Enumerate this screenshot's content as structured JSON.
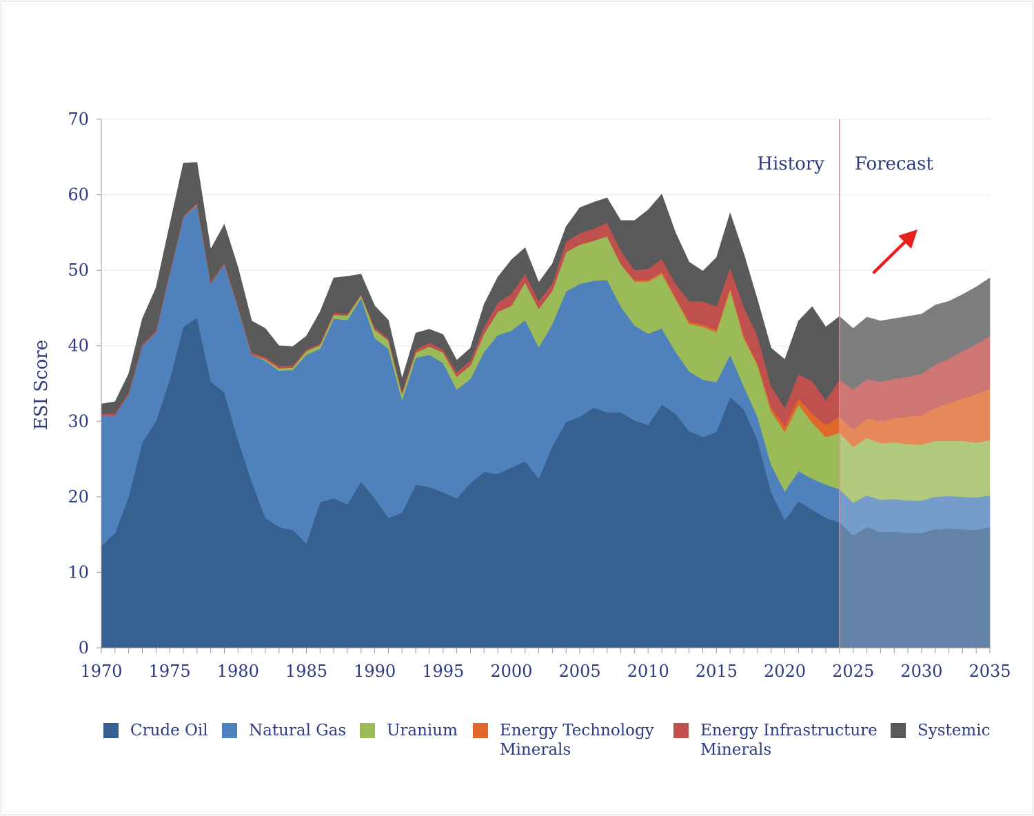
{
  "chart_data": {
    "type": "area",
    "stacked": true,
    "ylabel": "ESI Score",
    "xlabel": "",
    "ylim": [
      0,
      70
    ],
    "yticks": [
      0,
      10,
      20,
      30,
      40,
      50,
      60,
      70
    ],
    "xlim": [
      1970,
      2035
    ],
    "xticks": [
      1970,
      1975,
      1980,
      1985,
      1990,
      1995,
      2000,
      2005,
      2010,
      2015,
      2020,
      2025,
      2030,
      2035
    ],
    "grid": "horizontal",
    "legend_position": "bottom",
    "forecast_start": 2024,
    "annotations": {
      "history": "History",
      "forecast": "Forecast",
      "arrow": "red-up-right-arrow"
    },
    "x": [
      1970,
      1971,
      1972,
      1973,
      1974,
      1975,
      1976,
      1977,
      1978,
      1979,
      1980,
      1981,
      1982,
      1983,
      1984,
      1985,
      1986,
      1987,
      1988,
      1989,
      1990,
      1991,
      1992,
      1993,
      1994,
      1995,
      1996,
      1997,
      1998,
      1999,
      2000,
      2001,
      2002,
      2003,
      2004,
      2005,
      2006,
      2007,
      2008,
      2009,
      2010,
      2011,
      2012,
      2013,
      2014,
      2015,
      2016,
      2017,
      2018,
      2019,
      2020,
      2021,
      2022,
      2023,
      2024,
      2025,
      2026,
      2027,
      2028,
      2029,
      2030,
      2031,
      2032,
      2033,
      2034,
      2035
    ],
    "series": [
      {
        "name": "Crude Oil",
        "color": "#36608f",
        "values": [
          13.5,
          15.2,
          20.0,
          27.2,
          30.0,
          35.5,
          42.5,
          43.7,
          35.3,
          33.8,
          27.5,
          22.0,
          17.2,
          16.0,
          15.6,
          13.8,
          19.3,
          19.8,
          19.0,
          22.0,
          19.8,
          17.2,
          17.9,
          21.6,
          21.3,
          20.6,
          19.8,
          21.8,
          23.3,
          23.0,
          23.9,
          24.7,
          22.4,
          26.7,
          29.9,
          30.6,
          31.8,
          31.2,
          31.2,
          30.1,
          29.5,
          32.2,
          31.0,
          28.7,
          27.9,
          28.6,
          33.2,
          31.6,
          27.5,
          20.6,
          16.9,
          19.4,
          18.3,
          17.2,
          16.6,
          14.9,
          16.0,
          15.3,
          15.4,
          15.2,
          15.2,
          15.7,
          15.8,
          15.7,
          15.6,
          16.0
        ]
      },
      {
        "name": "Natural Gas",
        "color": "#4f81bd",
        "values": [
          17.3,
          15.6,
          13.6,
          12.8,
          11.8,
          14.0,
          14.5,
          14.9,
          12.9,
          17.0,
          17.5,
          16.8,
          20.8,
          20.7,
          21.2,
          25.0,
          20.3,
          23.8,
          24.4,
          24.3,
          21.2,
          22.4,
          14.9,
          16.8,
          17.5,
          17.1,
          14.4,
          13.8,
          15.9,
          18.4,
          18.1,
          18.7,
          17.4,
          16.2,
          17.3,
          17.6,
          16.8,
          17.5,
          14.0,
          12.6,
          12.1,
          10.1,
          8.2,
          7.9,
          7.6,
          6.6,
          5.6,
          3.0,
          3.1,
          3.6,
          3.8,
          4.0,
          4.1,
          4.4,
          4.4,
          4.3,
          4.2,
          4.3,
          4.3,
          4.3,
          4.3,
          4.3,
          4.3,
          4.3,
          4.3,
          4.2
        ]
      },
      {
        "name": "Uranium",
        "color": "#9bbb59",
        "values": [
          0,
          0,
          0,
          0,
          0,
          0,
          0,
          0.1,
          0,
          0,
          0,
          0,
          0.2,
          0.3,
          0.3,
          0.5,
          0.5,
          0.5,
          0.6,
          0.4,
          1.1,
          1.1,
          0.8,
          0.7,
          1.1,
          1.4,
          1.7,
          1.8,
          2.4,
          3.1,
          3.3,
          5.0,
          5.1,
          4.4,
          5.2,
          5.2,
          5.3,
          5.8,
          5.6,
          5.8,
          6.9,
          7.2,
          7.0,
          6.3,
          7.0,
          6.6,
          8.6,
          6.4,
          6.8,
          7.1,
          7.9,
          8.8,
          7.4,
          6.3,
          7.5,
          7.4,
          7.6,
          7.5,
          7.5,
          7.5,
          7.4,
          7.4,
          7.3,
          7.4,
          7.3,
          7.3
        ]
      },
      {
        "name": "Energy Technology\nMinerals",
        "color": "#e0672a",
        "values": [
          0,
          0,
          0,
          0,
          0,
          0,
          0,
          0,
          0,
          0,
          0,
          0,
          0,
          0,
          0,
          0,
          0,
          0,
          0,
          0,
          0,
          0,
          0,
          0,
          0,
          0,
          0,
          0,
          0,
          0,
          0,
          0,
          0,
          0,
          0,
          0,
          0,
          0,
          0,
          0.2,
          0.2,
          0.3,
          0.2,
          0.3,
          0.3,
          0.3,
          0.3,
          0.3,
          0.3,
          0.5,
          0.7,
          0.8,
          1.2,
          1.6,
          2.1,
          2.3,
          2.6,
          2.9,
          3.2,
          3.6,
          3.9,
          4.4,
          5.0,
          5.6,
          6.4,
          6.8
        ]
      },
      {
        "name": "Energy Infrastructure\nMinerals",
        "color": "#c0504d",
        "values": [
          0.2,
          0.2,
          0.2,
          0.2,
          0.2,
          0.2,
          0.2,
          0.2,
          0.2,
          0.2,
          0.2,
          0.3,
          0.3,
          0.3,
          0.3,
          0.2,
          0.2,
          0.3,
          0.2,
          0.1,
          0.3,
          0.3,
          0.3,
          0.4,
          0.5,
          0.4,
          0.6,
          0.6,
          0.9,
          1.2,
          1.6,
          1.1,
          1.0,
          1.0,
          1.4,
          1.5,
          1.6,
          1.8,
          1.8,
          1.3,
          1.5,
          1.7,
          1.8,
          2.7,
          3.1,
          3.1,
          2.6,
          3.8,
          3.6,
          2.8,
          2.5,
          3.2,
          4.3,
          3.3,
          4.9,
          5.3,
          5.2,
          5.2,
          5.2,
          5.3,
          5.5,
          5.7,
          5.9,
          6.3,
          6.6,
          7.0
        ]
      },
      {
        "name": "Systemic",
        "color": "#595959",
        "values": [
          1.3,
          1.6,
          2.5,
          3.4,
          5.7,
          6.3,
          7.0,
          5.4,
          4.4,
          5.1,
          5.2,
          4.2,
          3.8,
          2.7,
          2.5,
          1.8,
          4.2,
          4.6,
          5.0,
          2.7,
          2.9,
          2.4,
          1.8,
          2.2,
          1.8,
          2.0,
          1.6,
          1.7,
          3.0,
          3.4,
          4.5,
          3.5,
          2.5,
          2.6,
          2.0,
          3.4,
          3.5,
          3.3,
          4.0,
          6.6,
          7.8,
          8.6,
          6.8,
          5.2,
          4.0,
          6.5,
          7.3,
          7.1,
          4.8,
          5.1,
          6.4,
          7.1,
          9.9,
          9.7,
          8.4,
          8.1,
          8.2,
          8.1,
          8.0,
          8.0,
          7.9,
          7.9,
          7.6,
          7.5,
          7.6,
          7.7
        ]
      }
    ]
  },
  "colors": {
    "text": "#2b3a82",
    "forecast_line": "#e48a8a",
    "arrow": "#e8211e",
    "grid": "#e8e8e8"
  }
}
